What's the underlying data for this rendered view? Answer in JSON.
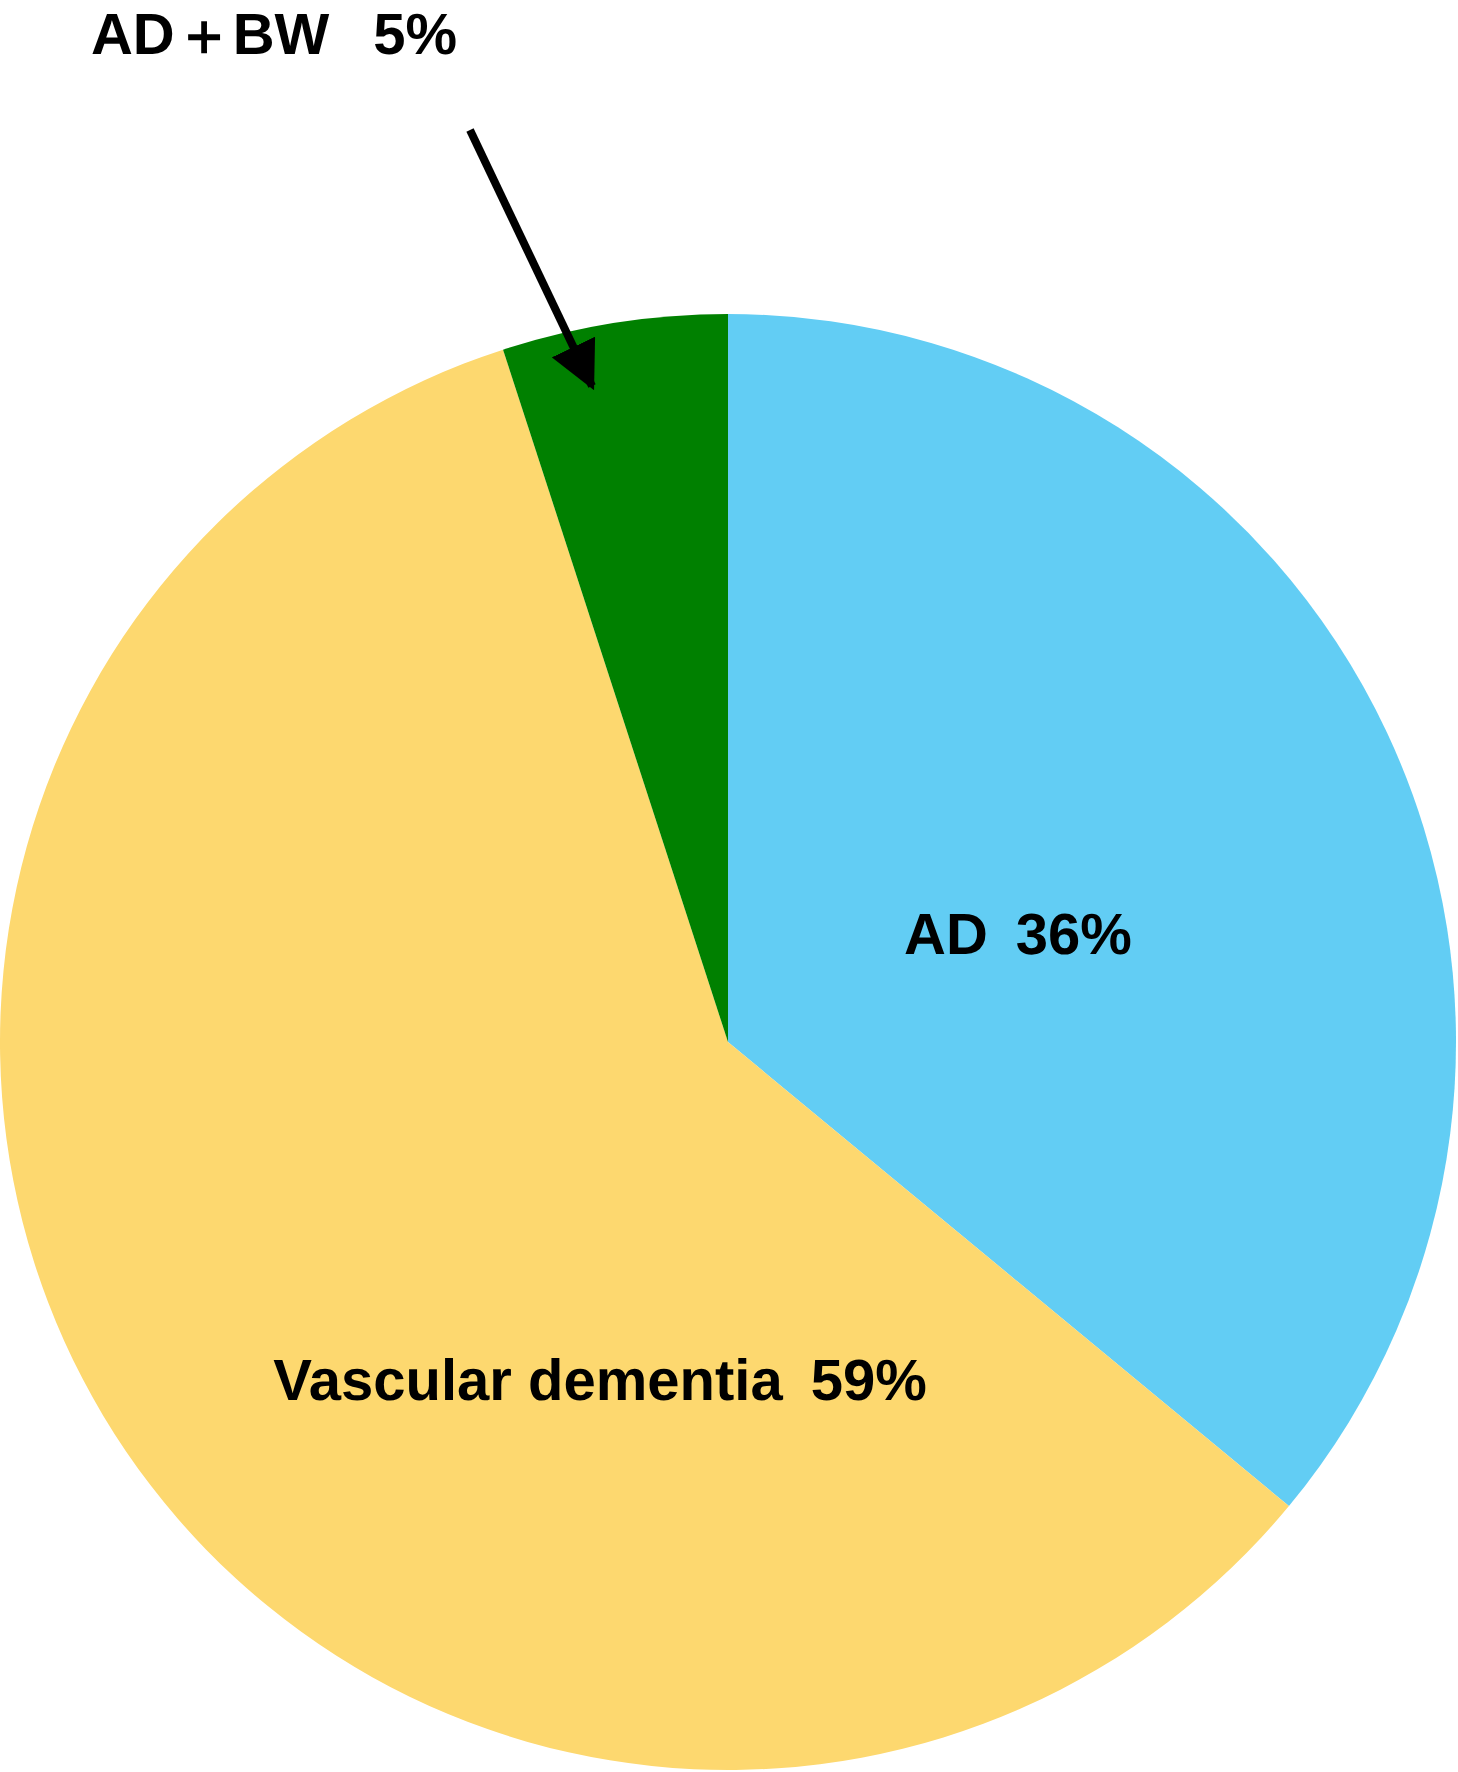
{
  "chart_data": {
    "type": "pie",
    "categories": [
      "AD",
      "Vascular dementia",
      "AD＋BW"
    ],
    "values": [
      36,
      59,
      5
    ],
    "colors": [
      "#62cdf4",
      "#fdd86f",
      "#008000"
    ],
    "value_labels": [
      "36%",
      "59%",
      "5%"
    ],
    "legend": false
  }
}
